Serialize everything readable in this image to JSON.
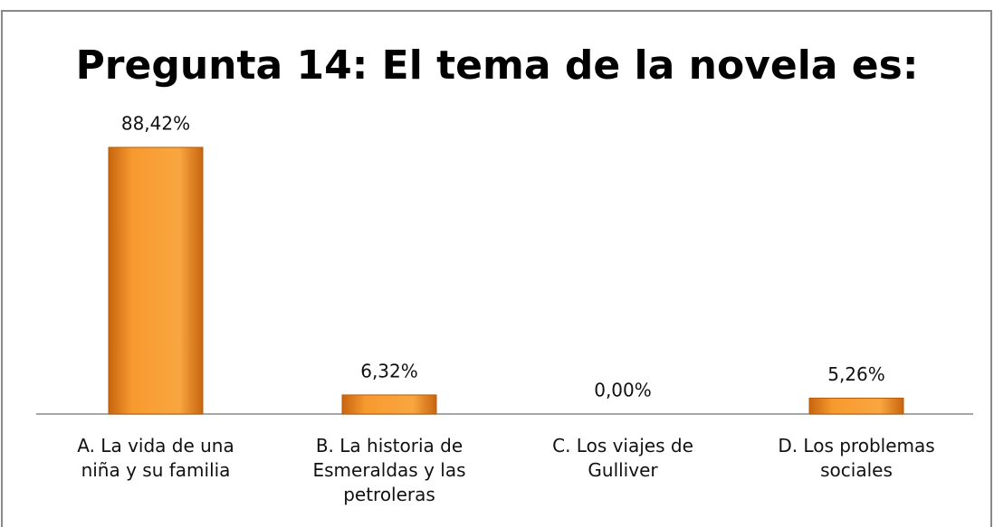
{
  "chart_data": {
    "type": "bar",
    "title": "Pregunta 14:  El tema de la novela es:",
    "categories": [
      "A. La vida de una niña y su familia",
      "B. La historia de Esmeraldas y las petroleras",
      "C. Los viajes de Gulliver",
      "D. Los problemas sociales"
    ],
    "values": [
      88.42,
      6.32,
      0,
      5.26
    ],
    "value_labels": [
      "88,42%",
      "6,32%",
      "0,00%",
      "5,26%"
    ],
    "color": "#f79a2e"
  }
}
